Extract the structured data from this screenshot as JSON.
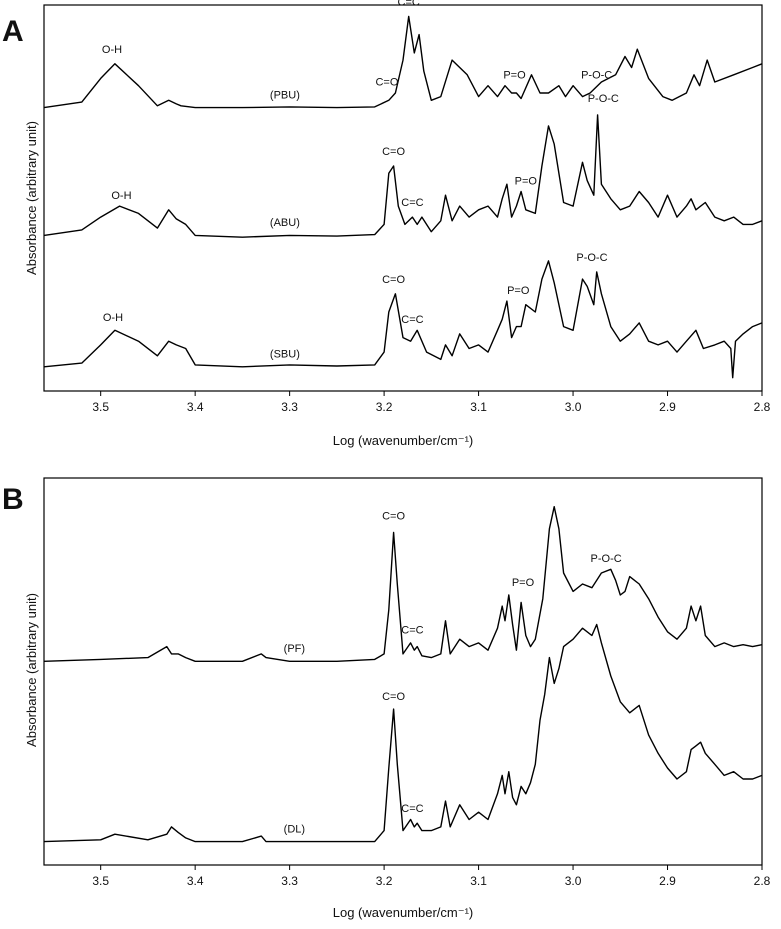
{
  "figure": {
    "panels": [
      {
        "letter": "A",
        "xlabel": "Log (wavenumber/cm⁻¹)",
        "ylabel": "Absorbance (arbitrary unit)"
      },
      {
        "letter": "B",
        "xlabel": "Log (wavenumber/cm⁻¹)",
        "ylabel": "Absorbance (arbitrary unit)"
      }
    ]
  },
  "chart_data": [
    {
      "panel": "A",
      "type": "line",
      "title": "",
      "xlabel": "Log (wavenumber/cm⁻¹)",
      "ylabel": "Absorbance (arbitrary unit)",
      "xlim": [
        3.56,
        2.8
      ],
      "x_reversed": true,
      "xticks": [
        "3.5",
        "3.4",
        "3.3",
        "3.2",
        "3.1",
        "3.0",
        "2.9",
        "2.8"
      ],
      "xtick_values": [
        3.5,
        3.4,
        3.3,
        3.2,
        3.1,
        3.0,
        2.9,
        2.8
      ],
      "ylim": [
        0,
        10
      ],
      "grid": false,
      "series": [
        {
          "name": "(PBU)",
          "x": [
            3.56,
            3.52,
            3.5,
            3.485,
            3.46,
            3.44,
            3.428,
            3.42,
            3.415,
            3.4,
            3.35,
            3.3,
            3.25,
            3.21,
            3.195,
            3.188,
            3.18,
            3.174,
            3.168,
            3.163,
            3.158,
            3.15,
            3.14,
            3.128,
            3.12,
            3.112,
            3.1,
            3.09,
            3.08,
            3.072,
            3.065,
            3.06,
            3.055,
            3.044,
            3.035,
            3.026,
            3.015,
            3.008,
            3.0,
            2.99,
            2.982,
            2.97,
            2.955,
            2.945,
            2.938,
            2.932,
            2.92,
            2.905,
            2.895,
            2.88,
            2.872,
            2.866,
            2.858,
            2.85,
            2.83,
            2.81,
            2.8
          ],
          "values": [
            7.6,
            7.75,
            8.4,
            8.8,
            8.2,
            7.65,
            7.8,
            7.7,
            7.65,
            7.6,
            7.6,
            7.62,
            7.6,
            7.62,
            7.8,
            8.0,
            8.9,
            10.1,
            9.1,
            9.6,
            8.6,
            7.8,
            7.9,
            8.9,
            8.7,
            8.5,
            7.9,
            8.2,
            7.9,
            8.2,
            8.0,
            8.0,
            7.85,
            8.5,
            8.0,
            8.0,
            8.2,
            7.9,
            8.2,
            7.9,
            8.0,
            8.3,
            8.5,
            9.0,
            8.7,
            9.2,
            8.4,
            7.9,
            7.8,
            8.0,
            8.5,
            8.2,
            8.9,
            8.3,
            8.5,
            8.7,
            8.8
          ]
        },
        {
          "name": "(ABU)",
          "x": [
            3.56,
            3.52,
            3.5,
            3.48,
            3.46,
            3.44,
            3.428,
            3.42,
            3.41,
            3.4,
            3.35,
            3.3,
            3.25,
            3.21,
            3.2,
            3.195,
            3.19,
            3.185,
            3.178,
            3.17,
            3.165,
            3.16,
            3.15,
            3.14,
            3.135,
            3.128,
            3.12,
            3.11,
            3.1,
            3.09,
            3.08,
            3.075,
            3.07,
            3.065,
            3.06,
            3.055,
            3.05,
            3.04,
            3.033,
            3.026,
            3.02,
            3.01,
            3.0,
            2.99,
            2.985,
            2.978,
            2.974,
            2.97,
            2.96,
            2.95,
            2.94,
            2.93,
            2.92,
            2.91,
            2.9,
            2.89,
            2.88,
            2.875,
            2.87,
            2.86,
            2.85,
            2.84,
            2.83,
            2.82,
            2.81,
            2.8
          ],
          "values": [
            4.1,
            4.25,
            4.6,
            4.9,
            4.7,
            4.3,
            4.8,
            4.55,
            4.4,
            4.1,
            4.05,
            4.1,
            4.08,
            4.12,
            4.4,
            5.8,
            6.0,
            4.9,
            4.4,
            4.6,
            4.4,
            4.6,
            4.2,
            4.5,
            5.2,
            4.5,
            4.9,
            4.6,
            4.8,
            4.9,
            4.6,
            5.1,
            5.5,
            4.6,
            4.9,
            5.3,
            4.8,
            4.7,
            6.0,
            7.1,
            6.6,
            5.0,
            4.9,
            6.1,
            5.6,
            5.2,
            7.4,
            5.5,
            5.1,
            4.8,
            4.9,
            5.3,
            5.0,
            4.6,
            5.2,
            4.6,
            4.9,
            5.1,
            4.8,
            5.0,
            4.6,
            4.5,
            4.6,
            4.4,
            4.4,
            4.5
          ]
        },
        {
          "name": "(SBU)",
          "x": [
            3.56,
            3.52,
            3.5,
            3.485,
            3.46,
            3.44,
            3.428,
            3.42,
            3.41,
            3.4,
            3.35,
            3.3,
            3.25,
            3.21,
            3.2,
            3.195,
            3.188,
            3.18,
            3.172,
            3.165,
            3.155,
            3.14,
            3.135,
            3.128,
            3.12,
            3.11,
            3.1,
            3.09,
            3.08,
            3.075,
            3.07,
            3.065,
            3.06,
            3.055,
            3.05,
            3.04,
            3.033,
            3.026,
            3.02,
            3.01,
            3.0,
            2.99,
            2.985,
            2.978,
            2.975,
            2.97,
            2.96,
            2.95,
            2.94,
            2.93,
            2.92,
            2.91,
            2.9,
            2.89,
            2.88,
            2.87,
            2.862,
            2.85,
            2.84,
            2.833,
            2.831,
            2.828,
            2.82,
            2.81,
            2.8
          ],
          "values": [
            0.5,
            0.6,
            1.1,
            1.5,
            1.2,
            0.8,
            1.2,
            1.1,
            1.0,
            0.55,
            0.5,
            0.55,
            0.52,
            0.55,
            0.9,
            2.0,
            2.5,
            1.3,
            1.2,
            1.5,
            0.9,
            0.7,
            1.1,
            0.8,
            1.4,
            1.0,
            1.1,
            0.9,
            1.5,
            1.8,
            2.3,
            1.3,
            1.6,
            1.6,
            2.2,
            2.0,
            2.9,
            3.4,
            2.8,
            1.6,
            1.5,
            2.9,
            2.7,
            2.2,
            3.1,
            2.5,
            1.6,
            1.2,
            1.4,
            1.7,
            1.2,
            1.1,
            1.2,
            0.9,
            1.2,
            1.5,
            1.0,
            1.1,
            1.2,
            1.0,
            0.2,
            1.2,
            1.4,
            1.6,
            1.7
          ]
        }
      ],
      "trace_labels": [
        {
          "text": "(PBU)",
          "x": 3.305,
          "y": 7.85
        },
        {
          "text": "(ABU)",
          "x": 3.305,
          "y": 4.35
        },
        {
          "text": "(SBU)",
          "x": 3.305,
          "y": 0.75
        }
      ],
      "annotations": [
        {
          "text": "O-H",
          "x": 3.488,
          "y": 9.1
        },
        {
          "text": "C=C",
          "x": 3.174,
          "y": 10.4
        },
        {
          "text": "C=O",
          "x": 3.197,
          "y": 8.2
        },
        {
          "text": "P=O",
          "x": 3.062,
          "y": 8.4
        },
        {
          "text": "P-O-C",
          "x": 2.975,
          "y": 8.4
        },
        {
          "text": "O-H",
          "x": 3.478,
          "y": 5.1
        },
        {
          "text": "C=O",
          "x": 3.19,
          "y": 6.3
        },
        {
          "text": "C=C",
          "x": 3.17,
          "y": 4.9
        },
        {
          "text": "P=O",
          "x": 3.05,
          "y": 5.5
        },
        {
          "text": "P-O-C",
          "x": 2.968,
          "y": 7.75
        },
        {
          "text": "O-H",
          "x": 3.487,
          "y": 1.75
        },
        {
          "text": "C=O",
          "x": 3.19,
          "y": 2.8
        },
        {
          "text": "C=C",
          "x": 3.17,
          "y": 1.7
        },
        {
          "text": "P=O",
          "x": 3.058,
          "y": 2.5
        },
        {
          "text": "P-O-C",
          "x": 2.98,
          "y": 3.4
        }
      ]
    },
    {
      "panel": "B",
      "type": "line",
      "title": "",
      "xlabel": "Log (wavenumber/cm⁻¹)",
      "ylabel": "Absorbance (arbitrary unit)",
      "xlim": [
        3.56,
        2.8
      ],
      "x_reversed": true,
      "xticks": [
        "3.5",
        "3.4",
        "3.3",
        "3.2",
        "3.1",
        "3.0",
        "2.9",
        "2.8"
      ],
      "xtick_values": [
        3.5,
        3.4,
        3.3,
        3.2,
        3.1,
        3.0,
        2.9,
        2.8
      ],
      "ylim": [
        0,
        10
      ],
      "grid": false,
      "series": [
        {
          "name": "(PF)",
          "x": [
            3.56,
            3.5,
            3.45,
            3.43,
            3.425,
            3.418,
            3.41,
            3.4,
            3.35,
            3.33,
            3.325,
            3.3,
            3.25,
            3.21,
            3.2,
            3.195,
            3.19,
            3.186,
            3.18,
            3.172,
            3.168,
            3.165,
            3.16,
            3.15,
            3.14,
            3.135,
            3.13,
            3.12,
            3.11,
            3.1,
            3.09,
            3.08,
            3.075,
            3.072,
            3.068,
            3.064,
            3.06,
            3.055,
            3.05,
            3.045,
            3.04,
            3.032,
            3.025,
            3.02,
            3.015,
            3.01,
            3.0,
            2.99,
            2.98,
            2.97,
            2.96,
            2.955,
            2.95,
            2.945,
            2.94,
            2.93,
            2.92,
            2.91,
            2.9,
            2.89,
            2.88,
            2.875,
            2.87,
            2.865,
            2.86,
            2.85,
            2.84,
            2.83,
            2.82,
            2.81,
            2.8
          ],
          "values": [
            5.4,
            5.45,
            5.5,
            5.8,
            5.6,
            5.6,
            5.5,
            5.4,
            5.4,
            5.6,
            5.5,
            5.4,
            5.4,
            5.45,
            5.6,
            6.8,
            8.9,
            7.5,
            5.6,
            5.9,
            5.7,
            5.8,
            5.55,
            5.5,
            5.6,
            6.5,
            5.6,
            6.0,
            5.8,
            5.9,
            5.7,
            6.3,
            6.9,
            6.5,
            7.2,
            6.4,
            5.7,
            7.0,
            6.1,
            5.8,
            6.0,
            7.1,
            9.0,
            9.6,
            9.0,
            7.8,
            7.3,
            7.5,
            7.4,
            7.8,
            7.9,
            7.6,
            7.2,
            7.3,
            7.7,
            7.5,
            7.1,
            6.6,
            6.2,
            6.0,
            6.3,
            6.9,
            6.5,
            6.9,
            6.1,
            5.8,
            5.9,
            5.8,
            5.85,
            5.8,
            5.85
          ]
        },
        {
          "name": "(DL)",
          "x": [
            3.56,
            3.5,
            3.485,
            3.45,
            3.43,
            3.425,
            3.418,
            3.41,
            3.4,
            3.35,
            3.33,
            3.325,
            3.3,
            3.25,
            3.21,
            3.2,
            3.195,
            3.19,
            3.186,
            3.18,
            3.172,
            3.168,
            3.165,
            3.16,
            3.15,
            3.14,
            3.135,
            3.13,
            3.12,
            3.11,
            3.1,
            3.09,
            3.08,
            3.075,
            3.072,
            3.068,
            3.064,
            3.06,
            3.055,
            3.05,
            3.045,
            3.04,
            3.035,
            3.03,
            3.025,
            3.02,
            3.015,
            3.01,
            3.0,
            2.99,
            2.98,
            2.975,
            2.97,
            2.96,
            2.95,
            2.94,
            2.93,
            2.92,
            2.91,
            2.9,
            2.89,
            2.88,
            2.875,
            2.87,
            2.865,
            2.86,
            2.85,
            2.84,
            2.83,
            2.82,
            2.81,
            2.8
          ],
          "values": [
            0.5,
            0.55,
            0.7,
            0.55,
            0.7,
            0.9,
            0.75,
            0.6,
            0.5,
            0.5,
            0.65,
            0.5,
            0.5,
            0.5,
            0.5,
            0.8,
            2.5,
            4.1,
            2.6,
            0.8,
            1.1,
            0.9,
            1.0,
            0.8,
            0.8,
            0.9,
            1.6,
            0.9,
            1.5,
            1.1,
            1.3,
            1.1,
            1.8,
            2.3,
            1.8,
            2.4,
            1.7,
            1.5,
            2.0,
            1.8,
            2.1,
            2.6,
            3.8,
            4.5,
            5.5,
            4.8,
            5.2,
            5.8,
            6.0,
            6.3,
            6.1,
            6.4,
            5.9,
            5.0,
            4.3,
            4.0,
            4.2,
            3.4,
            2.9,
            2.5,
            2.2,
            2.4,
            3.0,
            3.1,
            3.2,
            2.9,
            2.6,
            2.3,
            2.4,
            2.2,
            2.2,
            2.3
          ]
        }
      ],
      "trace_labels": [
        {
          "text": "(PF)",
          "x": 3.295,
          "y": 5.65
        },
        {
          "text": "(DL)",
          "x": 3.295,
          "y": 0.75
        }
      ],
      "annotations": [
        {
          "text": "C=O",
          "x": 3.19,
          "y": 9.25
        },
        {
          "text": "C=C",
          "x": 3.17,
          "y": 6.15
        },
        {
          "text": "P=O",
          "x": 3.053,
          "y": 7.45
        },
        {
          "text": "P-O-C",
          "x": 2.965,
          "y": 8.1
        },
        {
          "text": "C=O",
          "x": 3.19,
          "y": 4.35
        },
        {
          "text": "C=C",
          "x": 3.17,
          "y": 1.3
        }
      ]
    }
  ]
}
